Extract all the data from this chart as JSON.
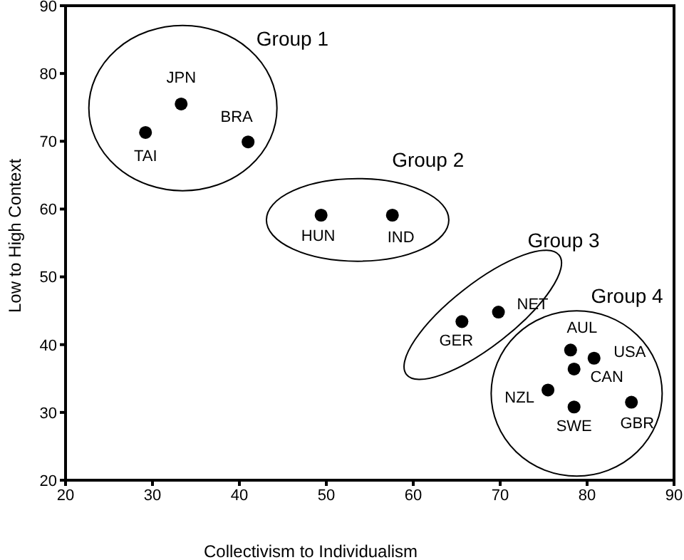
{
  "chart_data": {
    "type": "scatter",
    "xlabel": "Collectivism to Individualism",
    "ylabel": "Low to High Context",
    "xlim": [
      20,
      90
    ],
    "xticks": [
      20,
      30,
      40,
      50,
      60,
      70,
      80,
      90
    ],
    "ylim": [
      20,
      90
    ],
    "yticks": [
      20,
      30,
      40,
      50,
      60,
      70,
      80,
      90
    ],
    "marker": "circle",
    "series": [
      {
        "color": "#000000",
        "x": [
          33.3,
          29.2,
          41.0,
          49.4,
          57.6,
          65.6,
          69.8,
          78.1,
          80.8,
          78.5,
          75.5,
          78.5,
          85.1
        ],
        "values": [
          75.5,
          71.3,
          69.9,
          59.1,
          59.1,
          43.4,
          44.8,
          39.2,
          38.0,
          36.4,
          33.3,
          30.8,
          31.5
        ],
        "value_labels": [
          "JPN",
          "TAI",
          "BRA",
          "HUN",
          "IND",
          "GER",
          "NET",
          "AUL",
          "USA",
          "CAN",
          "NZL",
          "SWE",
          "GBR"
        ]
      }
    ],
    "annotations": [
      "Group 1",
      "Group 2",
      "Group 3",
      "Group 4"
    ]
  }
}
